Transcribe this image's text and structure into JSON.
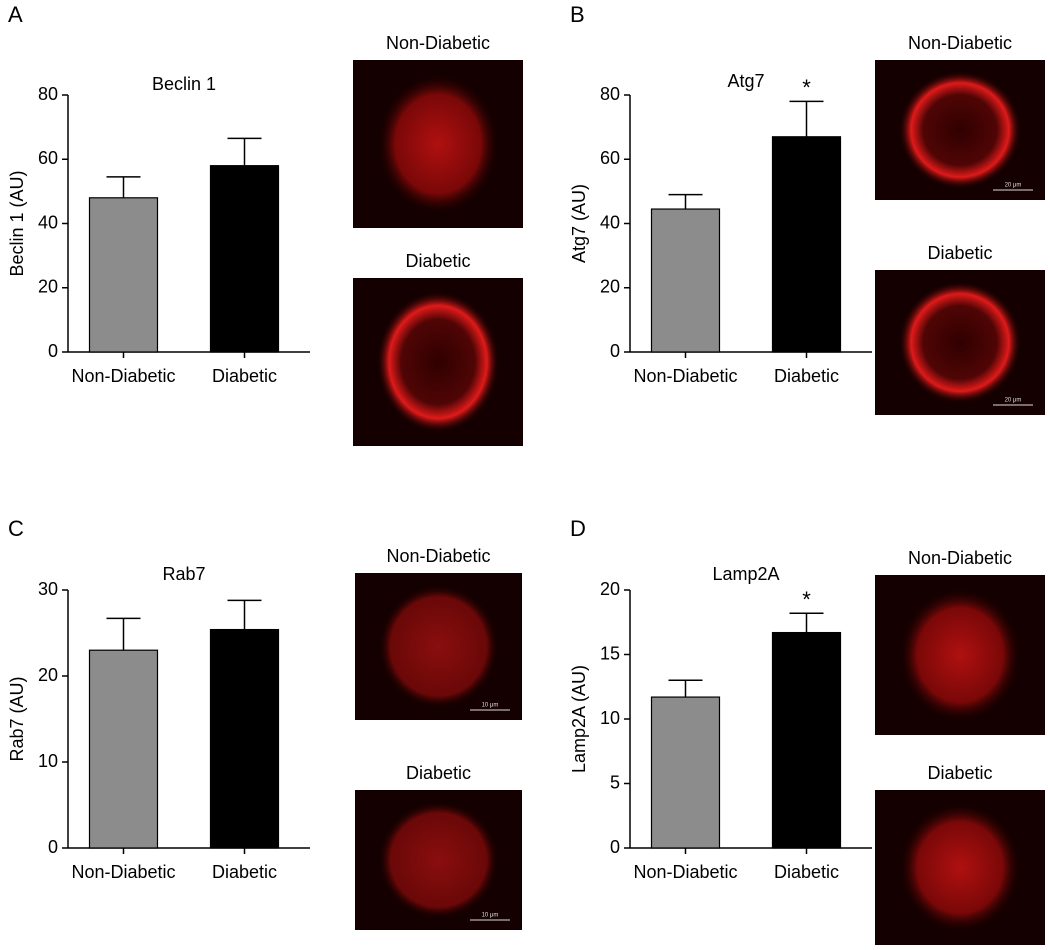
{
  "chart_data": [
    {
      "type": "bar",
      "panel": "A",
      "title": "Beclin 1",
      "y_label": "Beclin 1 (AU)",
      "categories": [
        "Non-Diabetic",
        "Diabetic"
      ],
      "values": [
        48,
        58
      ],
      "errors": [
        6.5,
        8.5
      ],
      "colors": [
        "#8c8c8c",
        "#000000"
      ],
      "ylim": [
        0,
        80
      ],
      "yticks": [
        0,
        20,
        40,
        60,
        80
      ],
      "annotations": [],
      "images": [
        {
          "label": "Non-Diabetic"
        },
        {
          "label": "Diabetic"
        }
      ]
    },
    {
      "type": "bar",
      "panel": "B",
      "title": "Atg7",
      "y_label": "Atg7 (AU)",
      "categories": [
        "Non-Diabetic",
        "Diabetic"
      ],
      "values": [
        44.5,
        67
      ],
      "errors": [
        4.5,
        11
      ],
      "colors": [
        "#8c8c8c",
        "#000000"
      ],
      "ylim": [
        0,
        80
      ],
      "yticks": [
        0,
        20,
        40,
        60,
        80
      ],
      "annotations": [
        {
          "text": "*",
          "x": "Diabetic"
        }
      ],
      "images": [
        {
          "label": "Non-Diabetic",
          "scale_bar": "20 μm"
        },
        {
          "label": "Diabetic",
          "scale_bar": "20 μm"
        }
      ]
    },
    {
      "type": "bar",
      "panel": "C",
      "title": "Rab7",
      "y_label": "Rab7 (AU)",
      "categories": [
        "Non-Diabetic",
        "Diabetic"
      ],
      "values": [
        23,
        25.4
      ],
      "errors": [
        3.7,
        3.4
      ],
      "colors": [
        "#8c8c8c",
        "#000000"
      ],
      "ylim": [
        0,
        30
      ],
      "yticks": [
        0,
        10,
        20,
        30
      ],
      "annotations": [],
      "images": [
        {
          "label": "Non-Diabetic",
          "scale_bar": "10 μm"
        },
        {
          "label": "Diabetic",
          "scale_bar": "10 μm"
        }
      ]
    },
    {
      "type": "bar",
      "panel": "D",
      "title": "Lamp2A",
      "y_label": "Lamp2A (AU)",
      "categories": [
        "Non-Diabetic",
        "Diabetic"
      ],
      "values": [
        11.7,
        16.7
      ],
      "errors": [
        1.3,
        1.5
      ],
      "colors": [
        "#8c8c8c",
        "#000000"
      ],
      "ylim": [
        0,
        20
      ],
      "yticks": [
        0,
        5,
        10,
        15,
        20
      ],
      "annotations": [
        {
          "text": "*",
          "x": "Diabetic"
        }
      ],
      "images": [
        {
          "label": "Non-Diabetic"
        },
        {
          "label": "Diabetic"
        }
      ]
    }
  ]
}
